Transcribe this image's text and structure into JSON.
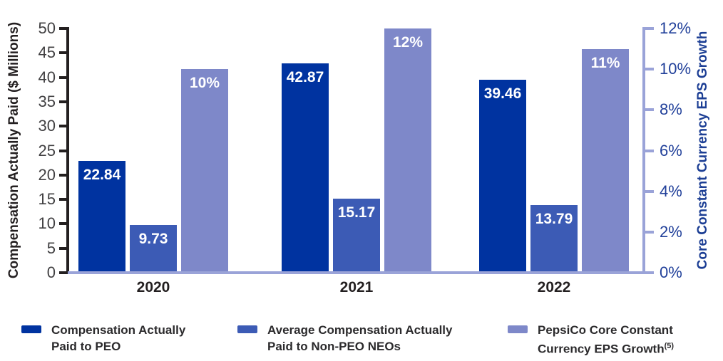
{
  "chart_data": {
    "type": "bar",
    "title": "",
    "categories": [
      "2020",
      "2021",
      "2022"
    ],
    "series": [
      {
        "name": "Compensation Actually Paid to PEO",
        "axis": "left",
        "values": [
          22.84,
          42.87,
          39.46
        ],
        "labels": [
          "22.84",
          "42.87",
          "39.46"
        ],
        "color": "#0033a0"
      },
      {
        "name": "Average Compensation Actually Paid to Non-PEO NEOs",
        "axis": "left",
        "values": [
          9.73,
          15.17,
          13.79
        ],
        "labels": [
          "9.73",
          "15.17",
          "13.79"
        ],
        "color": "#3c5bb5"
      },
      {
        "name": "PepsiCo Core Constant Currency EPS Growth(5)",
        "axis": "right",
        "values": [
          10,
          12,
          11
        ],
        "labels": [
          "10%",
          "12%",
          "11%"
        ],
        "color": "#7e88c9"
      }
    ],
    "left_axis": {
      "label": "Compensation Actually Paid ($ Millions)",
      "ticks": [
        "0",
        "5",
        "10",
        "15",
        "20",
        "25",
        "30",
        "35",
        "40",
        "45",
        "50"
      ],
      "tick_values": [
        0,
        5,
        10,
        15,
        20,
        25,
        30,
        35,
        40,
        45,
        50
      ],
      "range": [
        0,
        50
      ],
      "color": "#231f20"
    },
    "right_axis": {
      "label": "Core Constant Currency EPS Growth",
      "ticks": [
        "0%",
        "2%",
        "4%",
        "6%",
        "8%",
        "10%",
        "12%"
      ],
      "tick_values": [
        0,
        2,
        4,
        6,
        8,
        10,
        12
      ],
      "range": [
        0,
        12
      ],
      "line_color": "#9aa3d8",
      "text_color": "#21409a"
    },
    "legend_position": "bottom",
    "grid": false,
    "legend": [
      {
        "line1": "Compensation Actually",
        "line2": "Paid to PEO",
        "sup": "",
        "color": "#0033a0"
      },
      {
        "line1": "Average Compensation Actually",
        "line2": "Paid to Non-PEO NEOs",
        "sup": "",
        "color": "#3c5bb5"
      },
      {
        "line1": "PepsiCo Core Constant",
        "line2": "Currency EPS Growth",
        "sup": "(5)",
        "color": "#7e88c9"
      }
    ]
  }
}
